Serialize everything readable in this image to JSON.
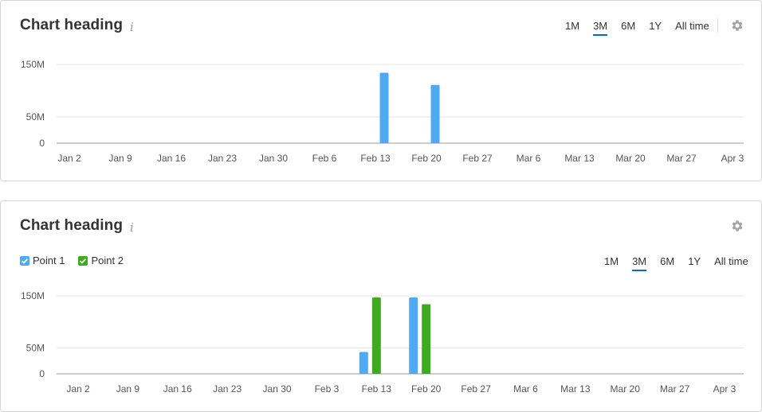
{
  "colors": {
    "series1": "#4eaaf5",
    "series2": "#3cab1e",
    "accent": "#006dca"
  },
  "periods": [
    "1M",
    "3M",
    "6M",
    "1Y",
    "All time"
  ],
  "active_period": "3M",
  "card1": {
    "title": "Chart heading",
    "info_icon": "info-icon",
    "settings_icon": "gear-icon"
  },
  "card2": {
    "title": "Chart heading",
    "info_icon": "info-icon",
    "settings_icon": "gear-icon",
    "legend": [
      {
        "label": "Point 1",
        "icon": "checkbox-icon",
        "checked": true
      },
      {
        "label": "Point 2",
        "icon": "checkbox-icon",
        "checked": true
      }
    ]
  },
  "chart_data": [
    {
      "type": "bar",
      "title": "Chart heading",
      "xlabel": "",
      "ylabel": "",
      "x_ticks": [
        "Jan 2",
        "Jan 9",
        "Jan 16",
        "Jan 23",
        "Jan 30",
        "Feb 6",
        "Feb 13",
        "Feb 20",
        "Feb 27",
        "Mar 6",
        "Mar 13",
        "Mar 20",
        "Mar 27",
        "Apr 3"
      ],
      "y_ticks": [
        "0",
        "50M",
        "150M"
      ],
      "ylim": [
        0,
        150000000
      ],
      "grid": true,
      "series": [
        {
          "name": "",
          "values": [
            {
              "date": "Feb 13",
              "y": 134000000
            },
            {
              "date": "Feb 20",
              "y": 111000000
            }
          ]
        }
      ]
    },
    {
      "type": "bar",
      "title": "Chart heading",
      "xlabel": "",
      "ylabel": "",
      "legend": "top-left",
      "x_ticks": [
        "Jan 2",
        "Jan 9",
        "Jan 16",
        "Jan 23",
        "Jan 30",
        "Feb 3",
        "Feb 13",
        "Feb 20",
        "Feb 27",
        "Mar 6",
        "Mar 13",
        "Mar 20",
        "Mar 27",
        "Apr 3"
      ],
      "y_ticks": [
        "0",
        "50M",
        "150M"
      ],
      "ylim": [
        0,
        150000000
      ],
      "grid": true,
      "series": [
        {
          "name": "Point 1",
          "values": [
            {
              "date": "Feb 13",
              "y": 42000000
            },
            {
              "date": "Feb 20",
              "y": 147000000
            }
          ]
        },
        {
          "name": "Point 2",
          "values": [
            {
              "date": "Feb 13",
              "y": 147000000
            },
            {
              "date": "Feb 20",
              "y": 134000000
            }
          ]
        }
      ]
    }
  ]
}
